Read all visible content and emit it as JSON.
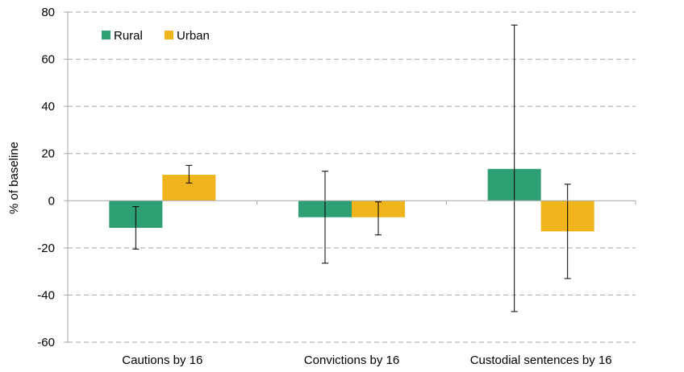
{
  "chart_data": {
    "type": "bar",
    "title": "",
    "xlabel": "",
    "ylabel": "% of baseline",
    "ylim": [
      -60,
      80
    ],
    "yticks": [
      80,
      60,
      40,
      20,
      0,
      -20,
      -40,
      -60
    ],
    "ytick_labels": [
      "80",
      "60",
      "40",
      "20",
      "0",
      "-20",
      "-40",
      "-60"
    ],
    "grid": true,
    "legend_position": "top-left",
    "categories": [
      "Cautions by 16",
      "Convictions by 16",
      "Custodial sentences by 16"
    ],
    "series": [
      {
        "name": "Rural",
        "color": "#2e9e73",
        "values": [
          -11.5,
          -7,
          13.5
        ],
        "error_low": [
          -20.5,
          -26.5,
          -47
        ],
        "error_high": [
          -2.5,
          12.5,
          74.5
        ]
      },
      {
        "name": "Urban",
        "color": "#f0b41c",
        "values": [
          11,
          -7,
          -13
        ],
        "error_low": [
          7.5,
          -14.5,
          -33
        ],
        "error_high": [
          15,
          -0.5,
          7
        ]
      }
    ]
  }
}
